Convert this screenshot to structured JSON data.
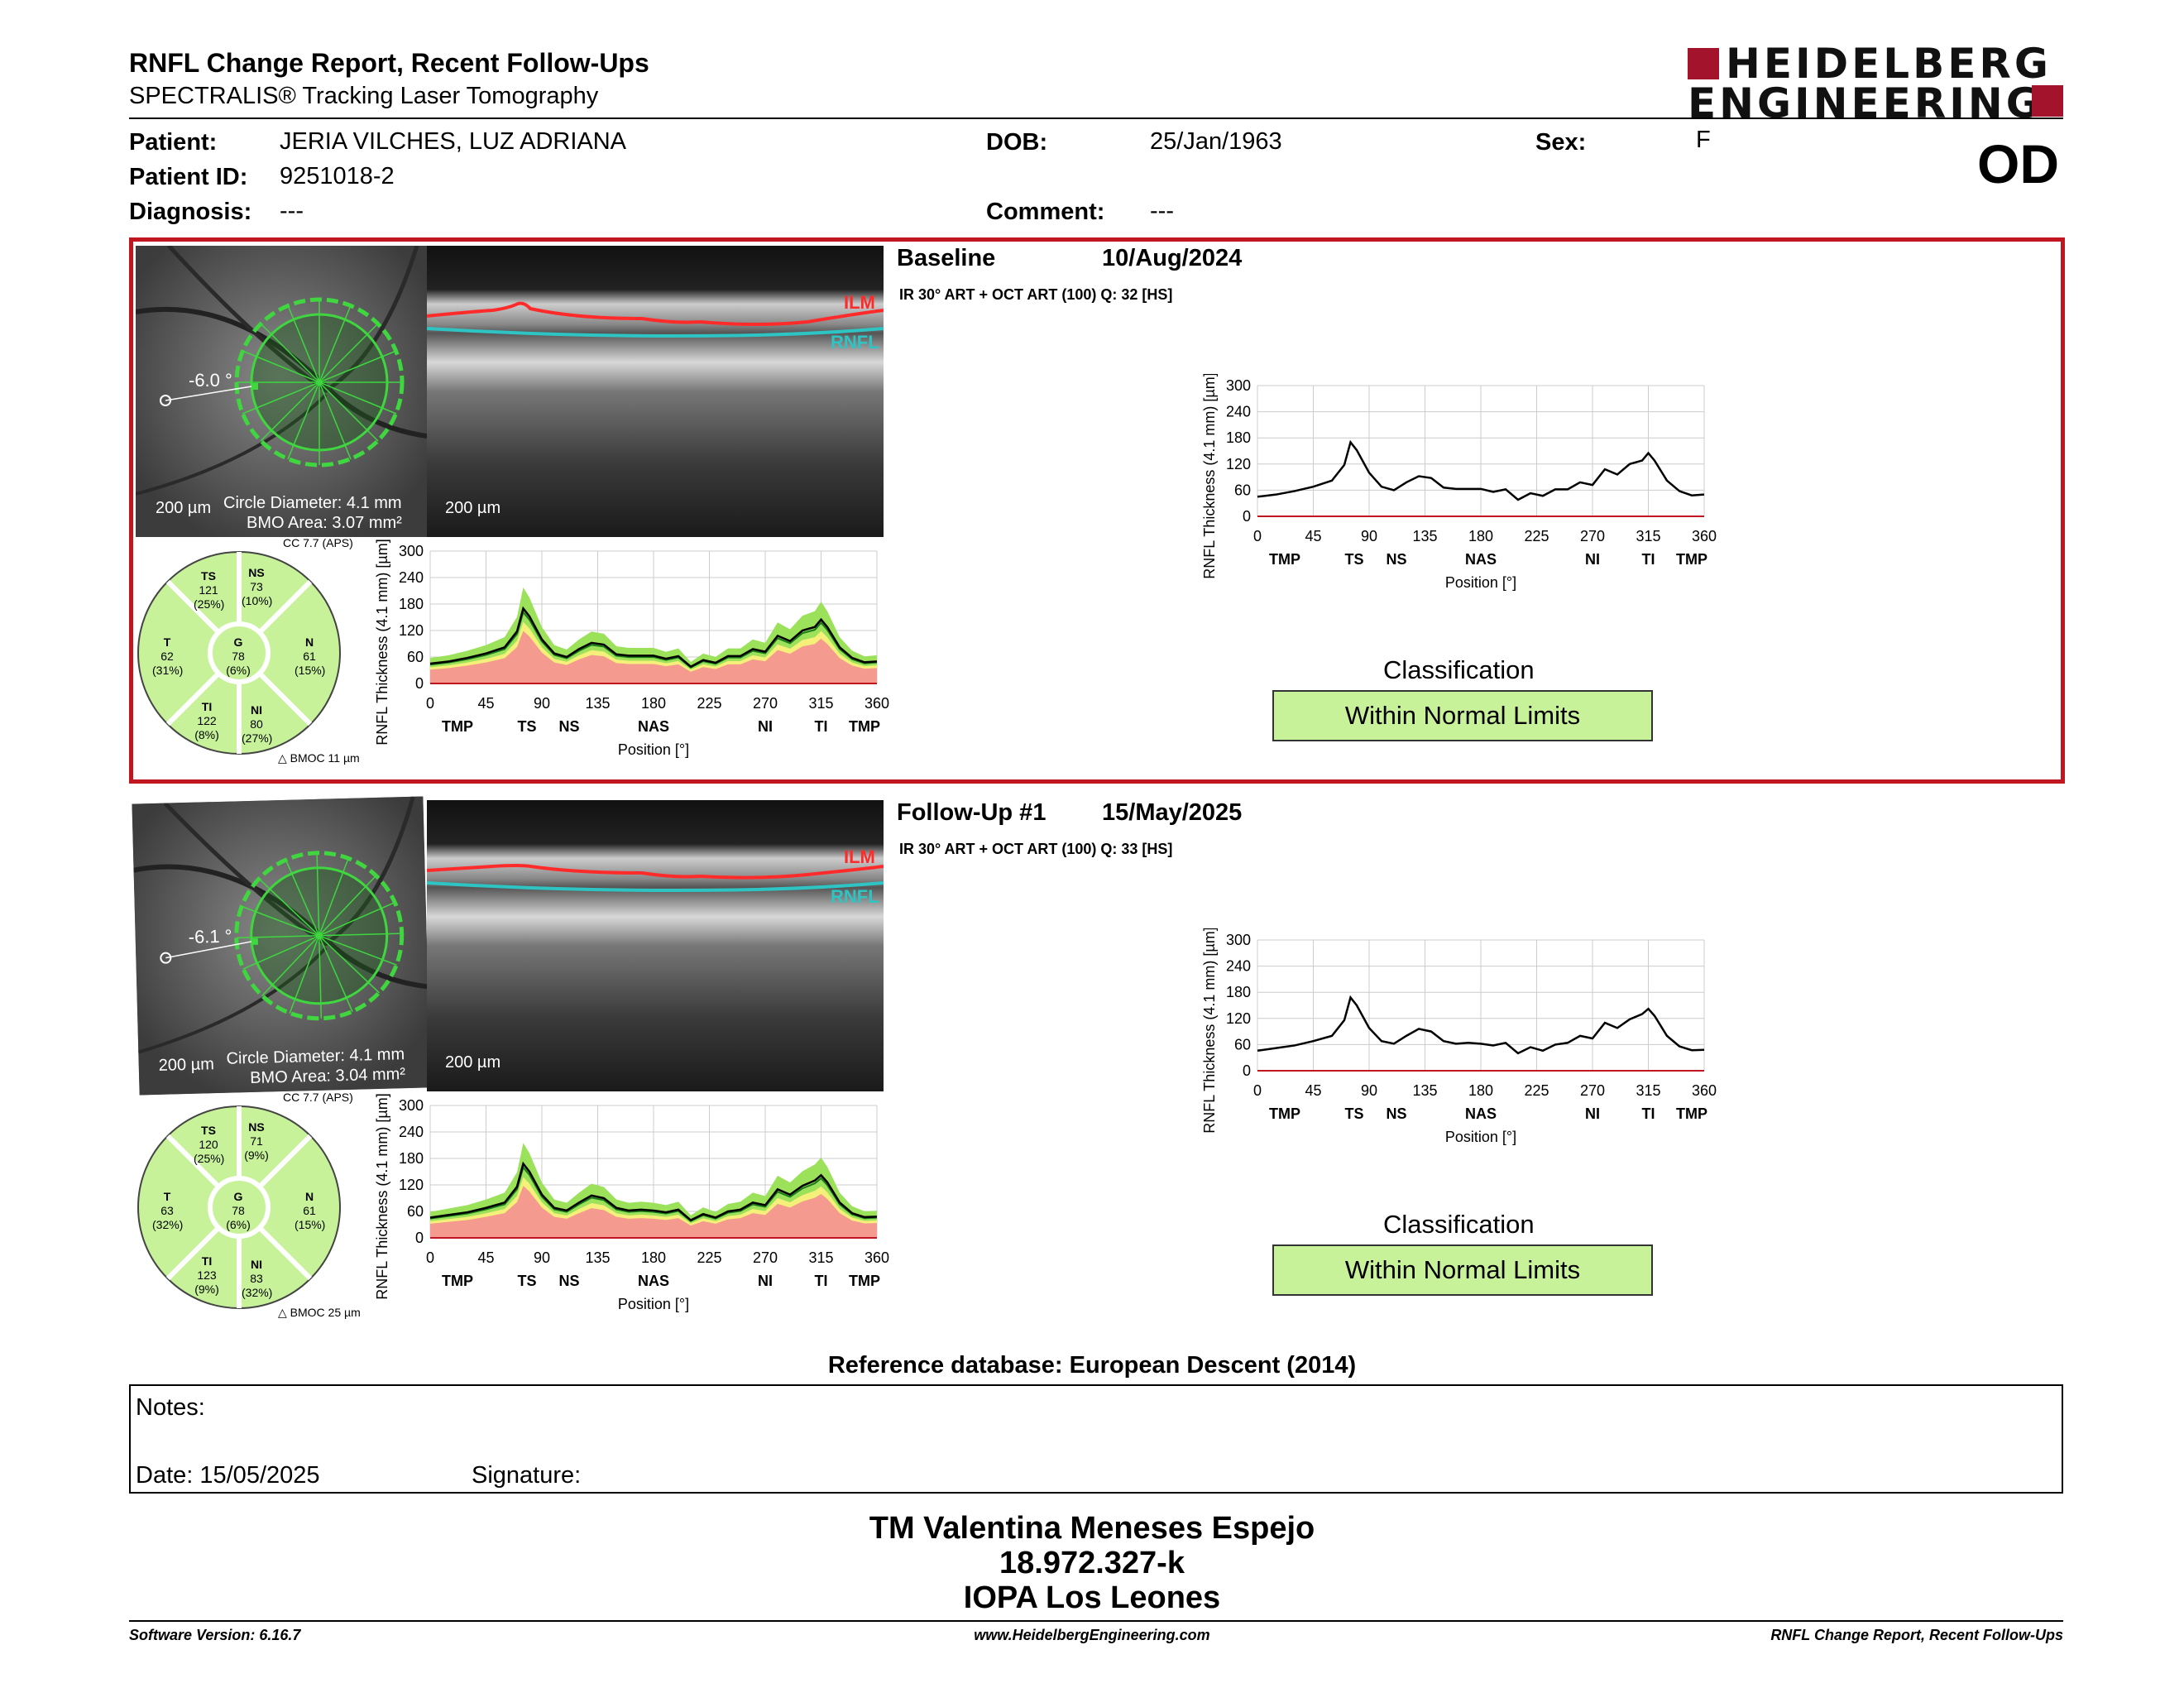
{
  "header": {
    "title": "RNFL Change Report, Recent Follow-Ups",
    "subtitle": "SPECTRALIS® Tracking Laser Tomography",
    "logo_line1": "HEIDELBERG",
    "logo_line2": "ENGINEERING",
    "eye": "OD"
  },
  "patient": {
    "patient_label": "Patient:",
    "patient_value": "JERIA VILCHES, LUZ ADRIANA",
    "id_label": "Patient ID:",
    "id_value": "9251018-2",
    "diagnosis_label": "Diagnosis:",
    "diagnosis_value": "---",
    "dob_label": "DOB:",
    "dob_value": "25/Jan/1963",
    "comment_label": "Comment:",
    "comment_value": "---",
    "sex_label": "Sex:",
    "sex_value": "F"
  },
  "colors": {
    "accent_red": "#c0161f",
    "wnl_green": "#c7f29a",
    "normal_green": "#9be15a",
    "border_yellow": "#f5f07a",
    "outside_red": "#f49a8e",
    "brand_red": "#a3132c"
  },
  "exams": [
    {
      "title": "Baseline",
      "date": "10/Aug/2024",
      "meta": "IR 30° ART + OCT ART (100) Q: 32 [HS]",
      "angle": "-6.0 °",
      "scale": "200 µm",
      "circle": "Circle Diameter: 4.1 mm",
      "bmo": "BMO Area: 3.07 mm²",
      "bscan_scale": "200 µm",
      "ilm": "ILM",
      "rnfl": "RNFL",
      "cc": "CC 7.7 (APS)",
      "delta": "BMOC 11 µm",
      "sectors": {
        "TS": {
          "name": "TS",
          "val": "121",
          "pct": "(25%)"
        },
        "NS": {
          "name": "NS",
          "val": "73",
          "pct": "(10%)"
        },
        "T": {
          "name": "T",
          "val": "62",
          "pct": "(31%)"
        },
        "G": {
          "name": "G",
          "val": "78",
          "pct": "(6%)"
        },
        "N": {
          "name": "N",
          "val": "61",
          "pct": "(15%)"
        },
        "TI": {
          "name": "TI",
          "val": "122",
          "pct": "(8%)"
        },
        "NI": {
          "name": "NI",
          "val": "80",
          "pct": "(27%)"
        }
      },
      "classification_title": "Classification",
      "classification": "Within Normal Limits"
    },
    {
      "title": "Follow-Up #1",
      "date": "15/May/2025",
      "meta": "IR 30° ART + OCT ART (100) Q: 33 [HS]",
      "angle": "-6.1 °",
      "scale": "200 µm",
      "circle": "Circle Diameter: 4.1 mm",
      "bmo": "BMO Area: 3.04 mm²",
      "bscan_scale": "200 µm",
      "ilm": "ILM",
      "rnfl": "RNFL",
      "cc": "CC 7.7 (APS)",
      "delta": "BMOC 25 µm",
      "sectors": {
        "TS": {
          "name": "TS",
          "val": "120",
          "pct": "(25%)"
        },
        "NS": {
          "name": "NS",
          "val": "71",
          "pct": "(9%)"
        },
        "T": {
          "name": "T",
          "val": "63",
          "pct": "(32%)"
        },
        "G": {
          "name": "G",
          "val": "78",
          "pct": "(6%)"
        },
        "N": {
          "name": "N",
          "val": "61",
          "pct": "(15%)"
        },
        "TI": {
          "name": "TI",
          "val": "123",
          "pct": "(9%)"
        },
        "NI": {
          "name": "NI",
          "val": "83",
          "pct": "(32%)"
        }
      },
      "classification_title": "Classification",
      "classification": "Within Normal Limits"
    }
  ],
  "chart_axes": {
    "ylabel": "RNFL Thickness (4.1 mm) [µm]",
    "xlabel": "Position [°]",
    "yticks": [
      "300",
      "240",
      "180",
      "120",
      "60",
      "0"
    ],
    "xticks": [
      "0",
      "45",
      "90",
      "135",
      "180",
      "225",
      "270",
      "315",
      "360"
    ],
    "sector_labels": [
      "TMP",
      "TS",
      "NS",
      "NAS",
      "NI",
      "TI",
      "TMP"
    ]
  },
  "chart_data": [
    {
      "type": "line",
      "title": "",
      "xlabel": "Position [°]",
      "ylabel": "RNFL Thickness (4.1 mm) [µm]",
      "xlim": [
        0,
        360
      ],
      "ylim": [
        0,
        300
      ],
      "x": [
        0,
        15,
        30,
        45,
        60,
        70,
        75,
        80,
        90,
        100,
        110,
        120,
        130,
        140,
        150,
        160,
        170,
        180,
        190,
        200,
        210,
        220,
        230,
        240,
        250,
        260,
        270,
        280,
        290,
        300,
        310,
        315,
        320,
        330,
        340,
        350,
        360
      ],
      "series": [
        {
          "values": [
            45,
            50,
            58,
            68,
            82,
            118,
            170,
            152,
            100,
            68,
            60,
            78,
            92,
            88,
            66,
            63,
            63,
            63,
            56,
            62,
            38,
            53,
            47,
            62,
            62,
            78,
            72,
            108,
            96,
            120,
            128,
            145,
            128,
            82,
            58,
            48,
            50
          ]
        }
      ]
    },
    {
      "type": "line",
      "title": "",
      "xlabel": "Position [°]",
      "ylabel": "RNFL Thickness (4.1 mm) [µm]",
      "xlim": [
        0,
        360
      ],
      "ylim": [
        0,
        300
      ],
      "x": [
        0,
        15,
        30,
        45,
        60,
        70,
        75,
        80,
        90,
        100,
        110,
        120,
        130,
        140,
        150,
        160,
        170,
        180,
        190,
        200,
        210,
        220,
        230,
        240,
        250,
        260,
        270,
        280,
        290,
        300,
        310,
        315,
        320,
        330,
        340,
        350,
        360
      ],
      "series": [
        {
          "values": [
            46,
            52,
            58,
            68,
            80,
            116,
            168,
            150,
            98,
            68,
            62,
            80,
            96,
            90,
            68,
            62,
            64,
            62,
            58,
            64,
            40,
            54,
            46,
            60,
            64,
            80,
            74,
            110,
            98,
            118,
            130,
            142,
            126,
            80,
            56,
            47,
            48
          ]
        }
      ]
    }
  ],
  "reference_db": "Reference database: European Descent (2014)",
  "notes": {
    "label": "Notes:",
    "date_label": "Date: 15/05/2025",
    "signature_label": "Signature:"
  },
  "signatory": {
    "name": "TM Valentina Meneses Espejo",
    "id": "18.972.327-k",
    "org": "IOPA Los Leones"
  },
  "footer": {
    "software": "Software Version: 6.16.7",
    "website": "www.HeidelbergEngineering.com",
    "report": "RNFL Change Report, Recent Follow-Ups"
  }
}
